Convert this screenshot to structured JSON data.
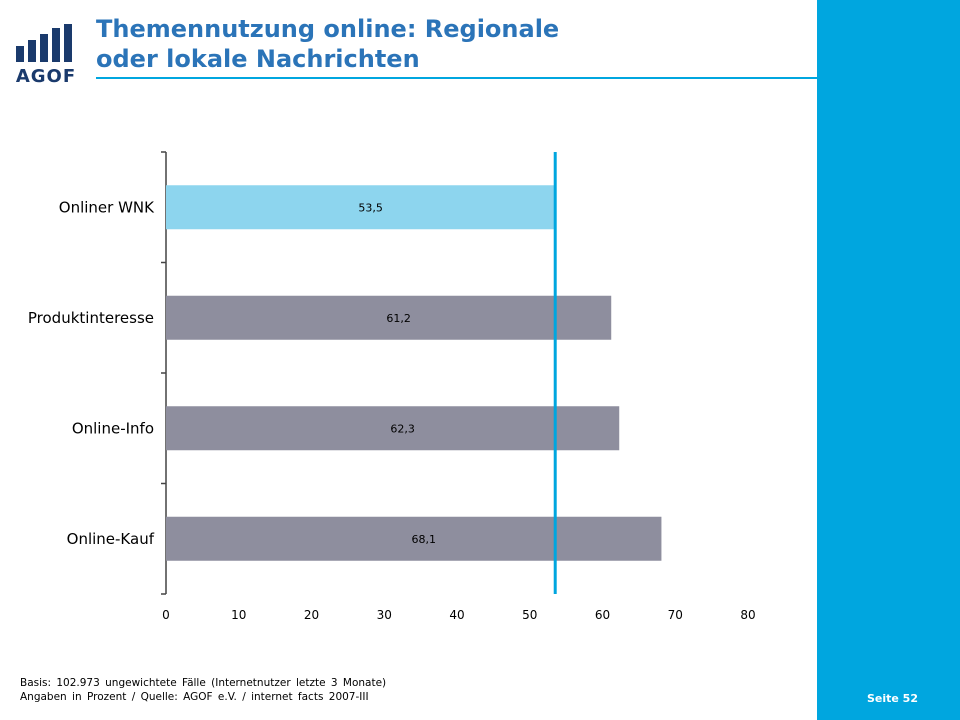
{
  "slide": {
    "title_line1": "Themennutzung online: Regionale",
    "title_line2": "oder lokale Nachrichten",
    "logo_text": "AGOF",
    "page_label": "Seite 52",
    "footnote_line1": "Basis: 102.973 ungewichtete Fälle (Internetnutzer letzte 3 Monate)",
    "footnote_line2": "Angaben in Prozent / Quelle: AGOF e.V. / internet facts 2007-III"
  },
  "colors": {
    "accent": "#00a6df",
    "title": "#2b74b8",
    "highlight_bar": "#8dd5ee",
    "bar": "#8e8e9e",
    "logo": "#1a3a6c"
  },
  "chart_data": {
    "type": "bar",
    "orientation": "horizontal",
    "categories": [
      "Onliner WNK",
      "Produktinteresse",
      "Online-Info",
      "Online-Kauf"
    ],
    "values": [
      53.5,
      61.2,
      62.3,
      68.1
    ],
    "value_labels": [
      "53,5",
      "61,2",
      "62,3",
      "68,1"
    ],
    "xlim": [
      0,
      80
    ],
    "xticks": [
      0,
      10,
      20,
      30,
      40,
      50,
      60,
      70,
      80
    ],
    "reference_value": 53.5,
    "highlight_index": 0,
    "grid": false
  }
}
